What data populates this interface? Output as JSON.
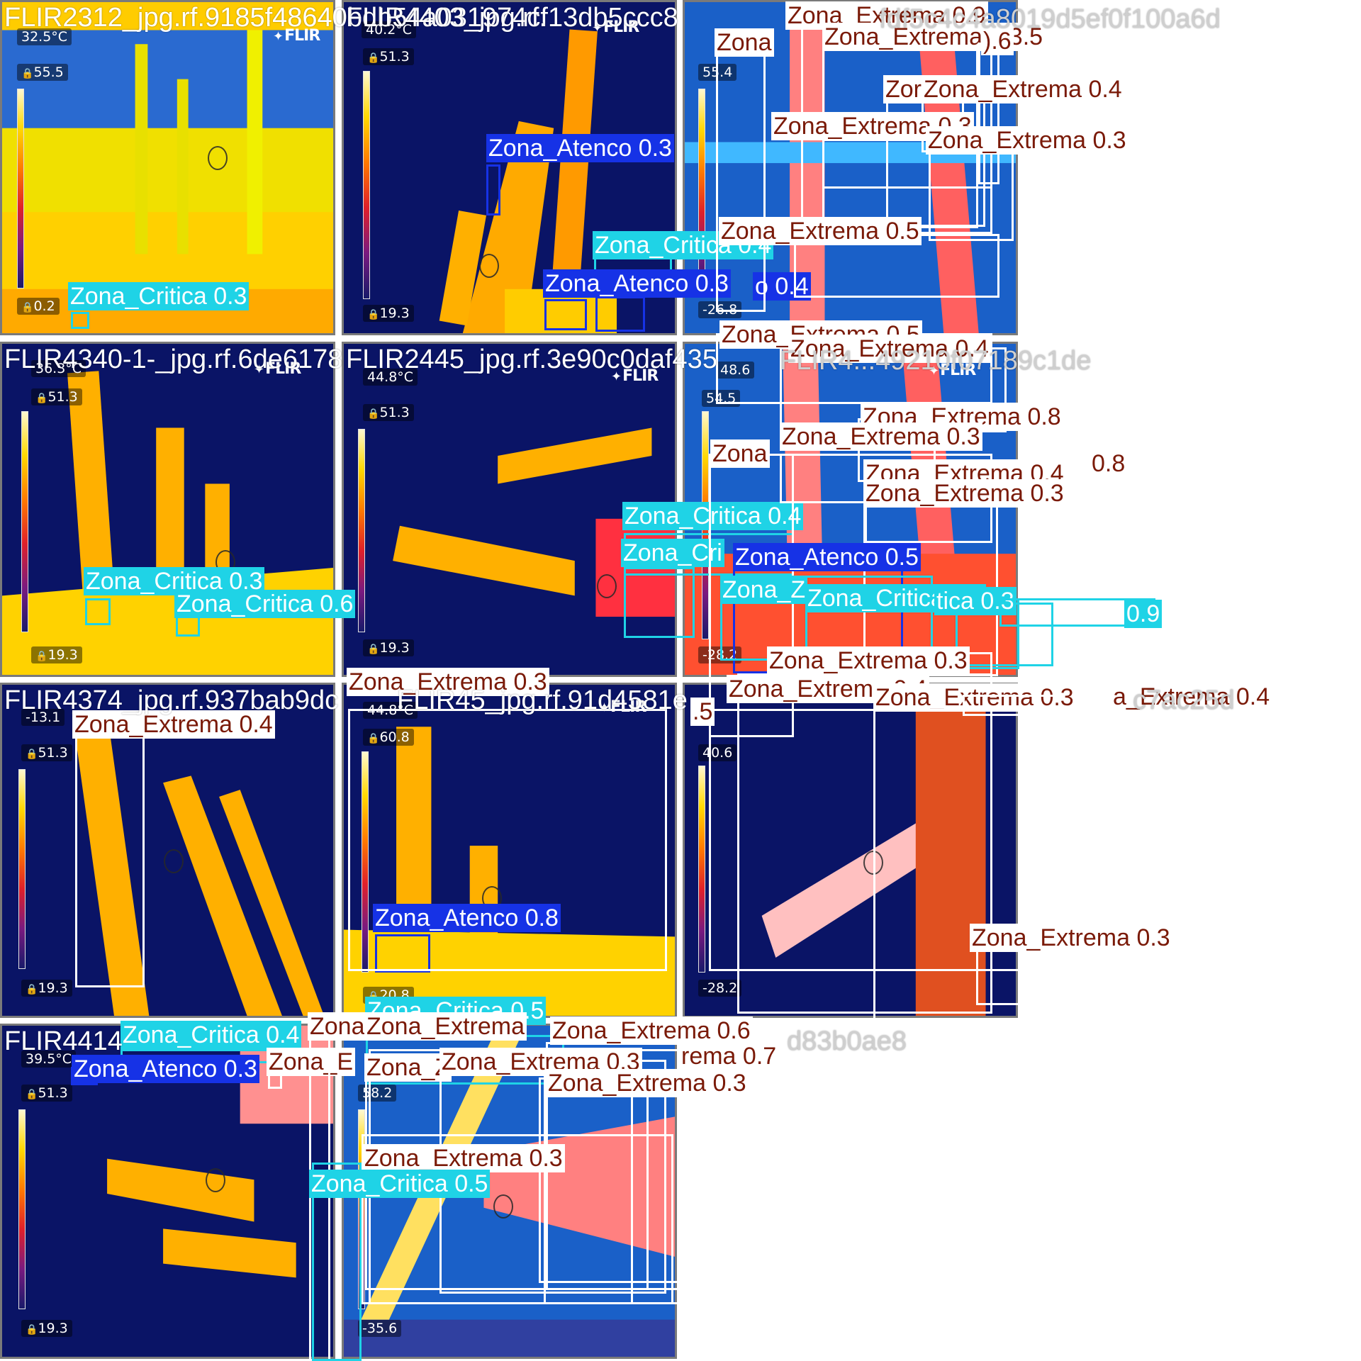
{
  "colors": {
    "critica": "#1fd3e6",
    "atenco": "#1632e6",
    "extrema": "#ffffff",
    "extrema_text": "#7a1a08",
    "background": "#ffffff",
    "tile_border": "#7a7a7a"
  },
  "filenames": [
    "FLIR2312_jpg.rf.9185f48640bdb54a031974cf13db5ccc8",
    "FLIR4403_jpg.rf.",
    "fdf5c4c4a8019d5ef0f100a6d",
    "FLIR4340-1-_jpg.rf.6de6178",
    "FLIR2445_jpg.rf.3e90c0daf435",
    "FLIR4...49210f07189c1de",
    "FLIR4374_jpg.rf.937bab9dc",
    "FLIR45_jpg.rf.91d4581e",
    "c7ac25d",
    "FLIR4414",
    "d83b0ae8"
  ],
  "hud": {
    "t1": {
      "spot": "32.5°C",
      "max": "55.5",
      "min": "0.2"
    },
    "t2": {
      "spot": "40.2°C",
      "max": "51.3",
      "min": "19.3"
    },
    "t3": {
      "max": "55.4",
      "min": "-26.8"
    },
    "t4": {
      "spot": "36.3°C",
      "max": "51.3",
      "min": "19.3"
    },
    "t5": {
      "spot": "44.8°C",
      "max": "51.3",
      "min": "19.3"
    },
    "t6": {
      "spot": "48.6",
      "max": "54.5",
      "min": "-28.2"
    },
    "t7": {
      "spot": "-13.1",
      "max": "51.3",
      "min": "19.3"
    },
    "t8": {
      "spot": "44.8°C",
      "max": "60.8",
      "min": "20.8"
    },
    "t9": {
      "max": "40.6",
      "min": "-28.2"
    },
    "t10": {
      "spot": "39.5°C",
      "max": "51.3",
      "min": "19.3"
    },
    "t11": {
      "max": "58.2",
      "min": "-35.6"
    },
    "brand": "FLIR"
  },
  "detections": [
    {
      "cls": "critica",
      "text": "Zona_Critica 0.3"
    },
    {
      "cls": "atenco",
      "text": "Zona_Atenco 0.3"
    },
    {
      "cls": "critica",
      "text": "Zona_Critica 0.4"
    },
    {
      "cls": "atenco",
      "text": "Zona_Atenco 0.3"
    },
    {
      "cls": "atenco",
      "text": "o 0.4"
    },
    {
      "cls": "extrema",
      "text": "Zona_Extrema 0.9"
    },
    {
      "cls": "extrema",
      "text": "Zona_Extrema 0.3.5"
    },
    {
      "cls": "extrema",
      "text": ").6"
    },
    {
      "cls": "extrema",
      "text": "Zona"
    },
    {
      "cls": "extrema",
      "text": "Zor"
    },
    {
      "cls": "extrema",
      "text": "Zona_Extrema 0.4"
    },
    {
      "cls": "extrema",
      "text": "Zona_Extrema 0.3"
    },
    {
      "cls": "extrema",
      "text": "Zona_Extrema 0.3"
    },
    {
      "cls": "extrema",
      "text": "Zona_Extrema 0.5"
    },
    {
      "cls": "extrema",
      "text": "Zona_Extrema 0.5"
    },
    {
      "cls": "extrema",
      "text": "Zona_Extrema 0.4"
    },
    {
      "cls": "critica",
      "text": "Zona_Critica 0.3"
    },
    {
      "cls": "critica",
      "text": "Zona_Critica 0.6"
    },
    {
      "cls": "critica",
      "text": "Zona_Critica 0.4"
    },
    {
      "cls": "critica",
      "text": "Zona_Cri"
    },
    {
      "cls": "extrema",
      "text": "Zona_Extrema 0.8"
    },
    {
      "cls": "extrema",
      "text": "Zona_Extrema 0.3"
    },
    {
      "cls": "extrema",
      "text": "Zona"
    },
    {
      "cls": "extrema",
      "text": "Zona_Extrema 0.4"
    },
    {
      "cls": "extrema",
      "text": "0.8"
    },
    {
      "cls": "extrema",
      "text": "Zona_Extrema 0.3"
    },
    {
      "cls": "atenco",
      "text": "Zona_Atenco 0.5"
    },
    {
      "cls": "critica",
      "text": "Zona_Z"
    },
    {
      "cls": "critica",
      "text": "Zona_Critica 0.3"
    },
    {
      "cls": "critica",
      "text": "tica 0.3"
    },
    {
      "cls": "critica",
      "text": "0.9"
    },
    {
      "cls": "extrema",
      "text": "Zona_Extrema 0.3"
    },
    {
      "cls": "extrema",
      "text": "Zona_Extrema 0.4"
    },
    {
      "cls": "extrema",
      "text": "Zona_Extrema 0.3"
    },
    {
      "cls": "extrema",
      "text": "a_Extrema 0.4"
    },
    {
      "cls": "extrema",
      "text": ".5"
    },
    {
      "cls": "extrema",
      "text": "Zona_Extrema 0.3"
    },
    {
      "cls": "extrema",
      "text": "Zona_Extrema 0.4"
    },
    {
      "cls": "atenco",
      "text": "Zona_Atenco 0.8"
    },
    {
      "cls": "extrema",
      "text": "Zona_Extrema 0.3"
    },
    {
      "cls": "critica",
      "text": "Zona_Critica 0.4"
    },
    {
      "cls": "atenco",
      "text": "Zona_Atenco 0.3"
    },
    {
      "cls": "extrema",
      "text": "Zona_E"
    },
    {
      "cls": "extrema",
      "text": "Zona"
    },
    {
      "cls": "critica",
      "text": "Zona_Critica 0.5"
    },
    {
      "cls": "extrema",
      "text": "Zona_Extrema"
    },
    {
      "cls": "extrema",
      "text": "Zona_Extrema 0.6"
    },
    {
      "cls": "extrema",
      "text": "rema 0.7"
    },
    {
      "cls": "extrema",
      "text": "Zona_Z"
    },
    {
      "cls": "extrema",
      "text": "Zona_Extrema 0.3"
    },
    {
      "cls": "extrema",
      "text": "Zona_Extrema 0.3"
    },
    {
      "cls": "extrema",
      "text": "Zona_Extrema 0.3"
    },
    {
      "cls": "critica",
      "text": "Zona_Critica 0.5"
    }
  ]
}
